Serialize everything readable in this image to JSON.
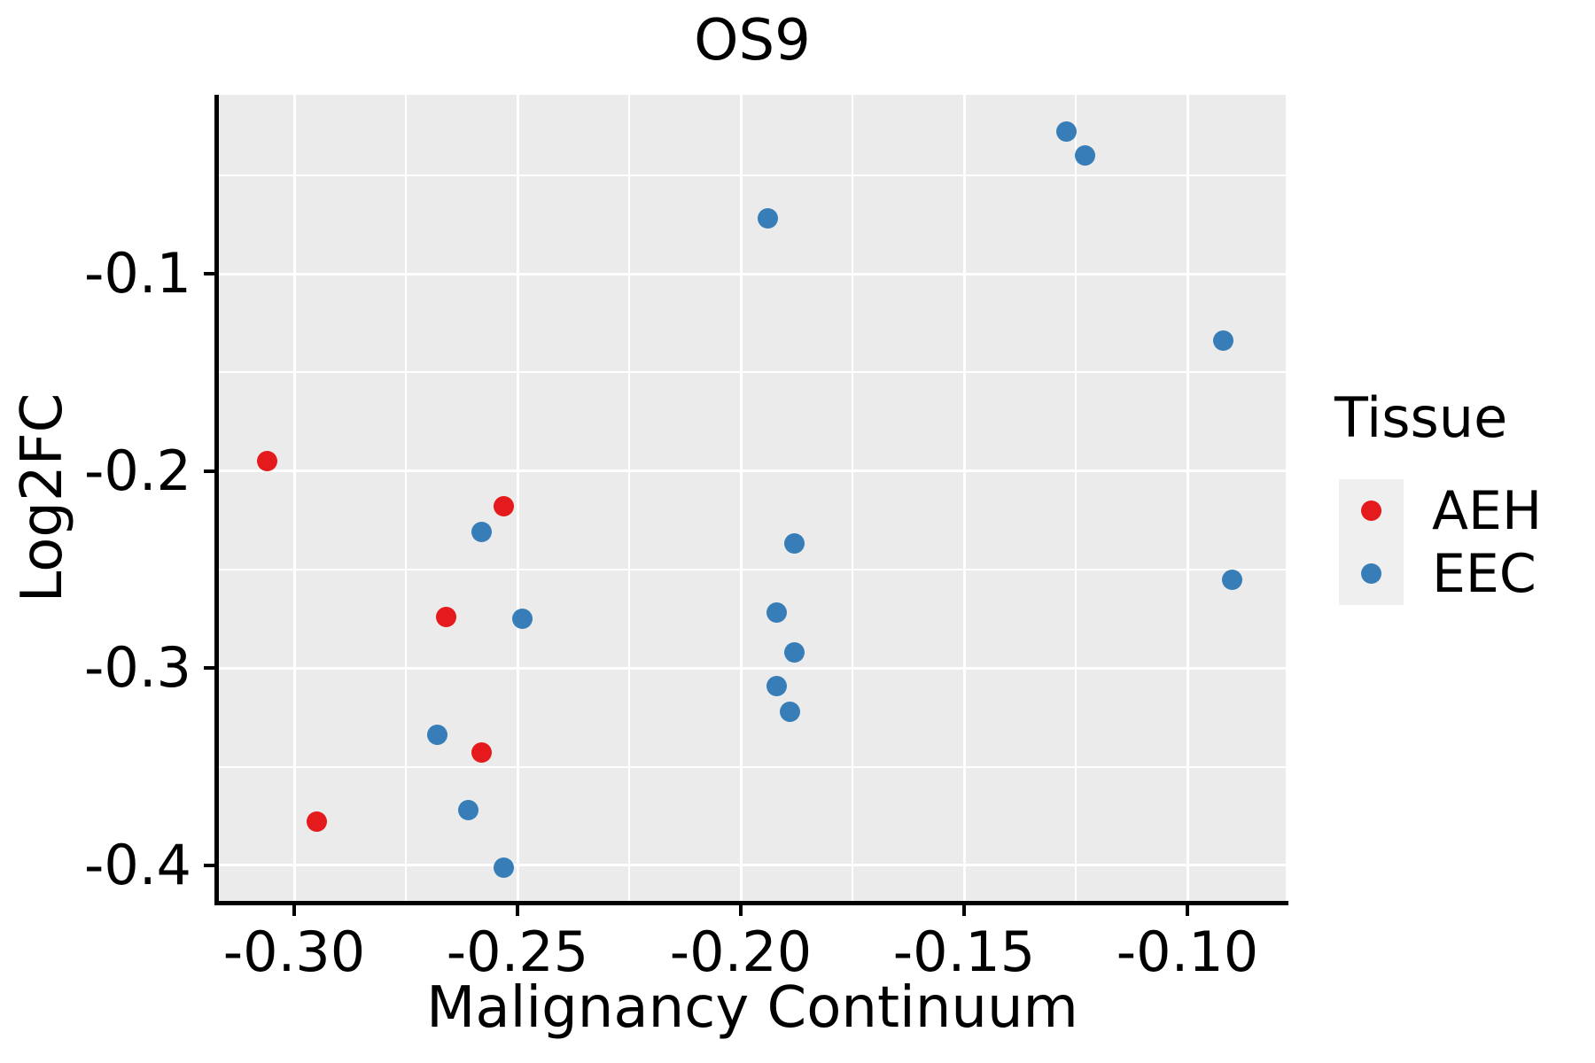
{
  "title": "OS9",
  "x_axis": {
    "label": "Malignancy Continuum",
    "tick_labels": [
      "-0.30",
      "-0.25",
      "-0.20",
      "-0.15",
      "-0.10"
    ],
    "tick_values": [
      -0.3,
      -0.25,
      -0.2,
      -0.15,
      -0.1
    ]
  },
  "y_axis": {
    "label": "Log2FC",
    "tick_labels": [
      "-0.1",
      "-0.2",
      "-0.3",
      "-0.4"
    ],
    "tick_values": [
      -0.1,
      -0.2,
      -0.3,
      -0.4
    ]
  },
  "legend": {
    "title": "Tissue",
    "entries": [
      {
        "label": "AEH",
        "color": "#E41A1C"
      },
      {
        "label": "EEC",
        "color": "#377EB8"
      }
    ]
  },
  "colors": {
    "panel_background": "#EBEBEB",
    "gridline": "#FFFFFF",
    "axis_text": "#000000",
    "aeh_red": "#E41A1C",
    "eec_blue": "#377EB8"
  },
  "chart_data": {
    "type": "scatter",
    "title": "OS9",
    "xlabel": "Malignancy Continuum",
    "ylabel": "Log2FC",
    "xlim": [
      -0.308,
      -0.076
    ],
    "ylim": [
      -0.42,
      -0.009
    ],
    "grid": true,
    "legend_position": "right",
    "series": [
      {
        "name": "AEH",
        "color": "#E41A1C",
        "points": [
          [
            -0.306,
            -0.195
          ],
          [
            -0.253,
            -0.218
          ],
          [
            -0.266,
            -0.274
          ],
          [
            -0.258,
            -0.343
          ],
          [
            -0.295,
            -0.378
          ]
        ]
      },
      {
        "name": "EEC",
        "color": "#377EB8",
        "points": [
          [
            -0.127,
            -0.028
          ],
          [
            -0.123,
            -0.04
          ],
          [
            -0.194,
            -0.072
          ],
          [
            -0.092,
            -0.134
          ],
          [
            -0.258,
            -0.231
          ],
          [
            -0.188,
            -0.237
          ],
          [
            -0.09,
            -0.255
          ],
          [
            -0.192,
            -0.272
          ],
          [
            -0.249,
            -0.275
          ],
          [
            -0.188,
            -0.292
          ],
          [
            -0.192,
            -0.309
          ],
          [
            -0.189,
            -0.322
          ],
          [
            -0.268,
            -0.334
          ],
          [
            -0.261,
            -0.372
          ],
          [
            -0.253,
            -0.401
          ]
        ]
      }
    ]
  }
}
